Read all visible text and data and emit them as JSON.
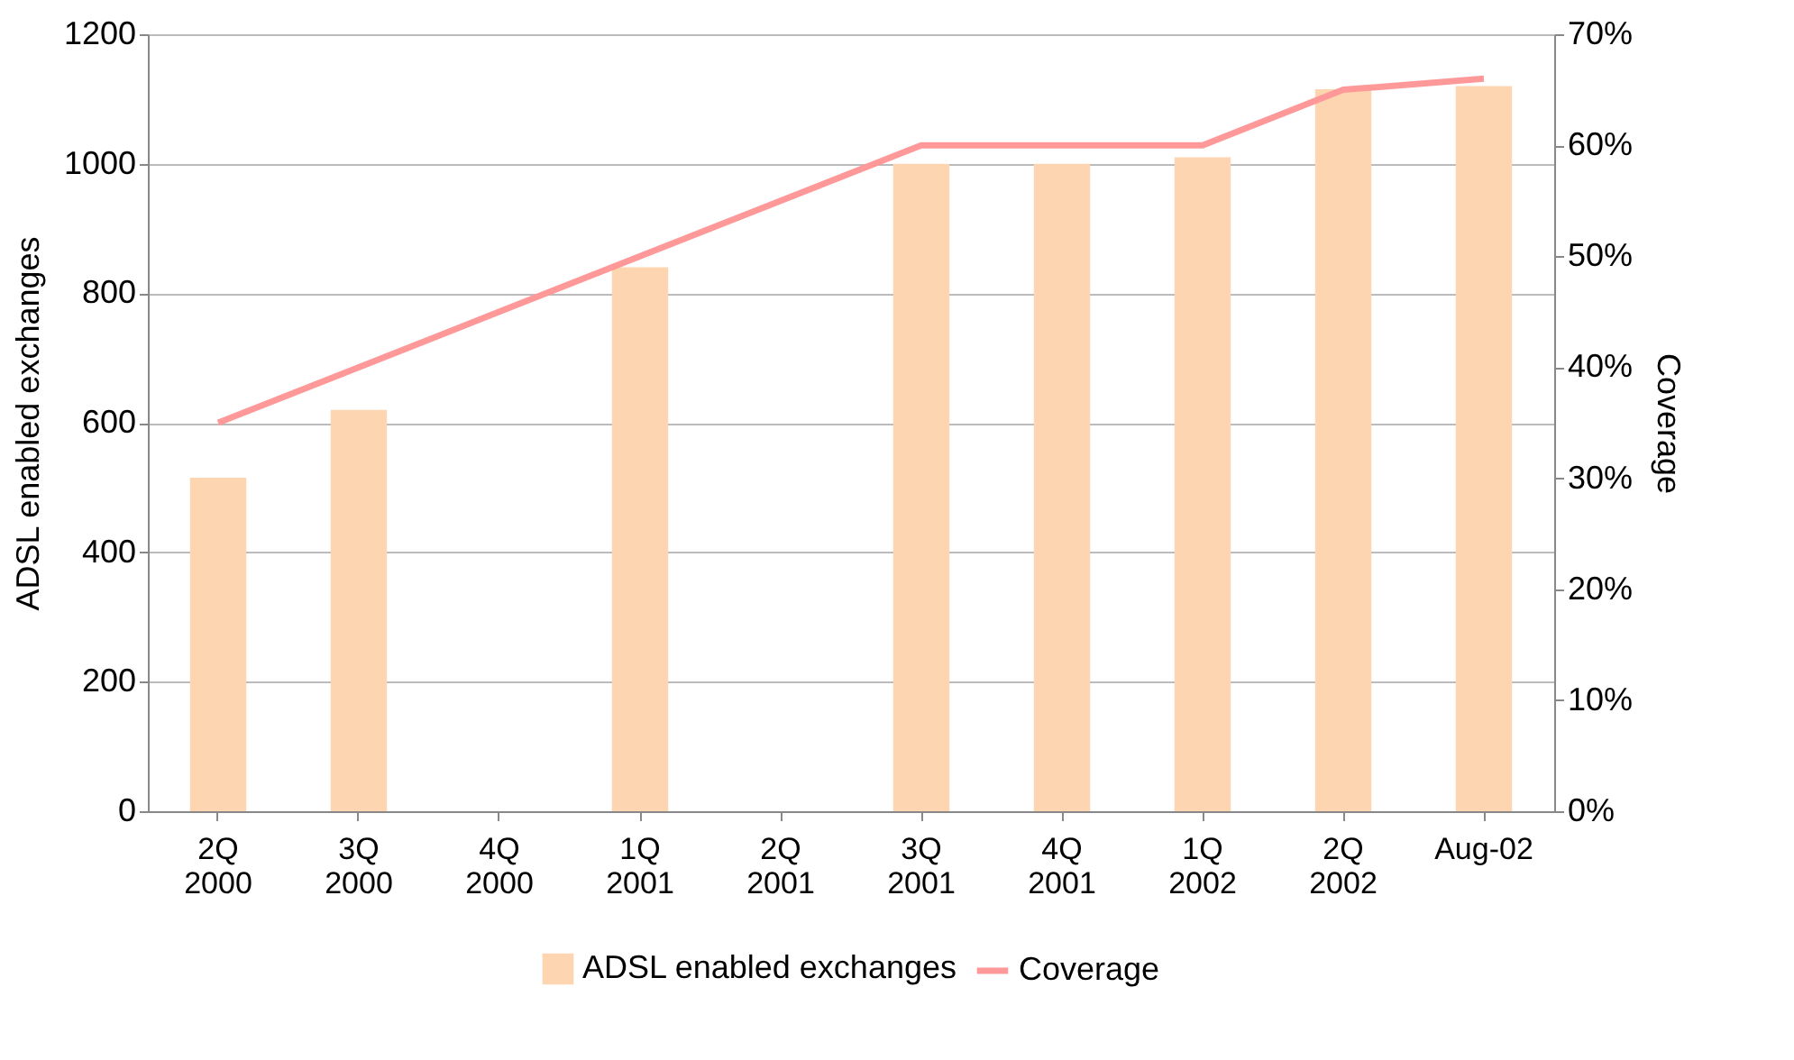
{
  "chart_data": {
    "type": "bar",
    "categories": [
      "2Q 2000",
      "3Q 2000",
      "4Q 2000",
      "1Q 2001",
      "2Q 2001",
      "3Q 2001",
      "4Q 2001",
      "1Q 2002",
      "2Q 2002",
      "Aug-02"
    ],
    "series": [
      {
        "name": "ADSL enabled exchanges",
        "color": "#fdd5b1",
        "values": [
          515,
          620,
          null,
          840,
          null,
          1000,
          1000,
          1010,
          1115,
          1120
        ]
      },
      {
        "name": "Coverage",
        "type": "line",
        "axis": "y2",
        "color": "#ff9999",
        "values": [
          35,
          40,
          45,
          50,
          55,
          60,
          60,
          60,
          65,
          66
        ]
      }
    ],
    "ylabel": "ADSL enabled exchanges",
    "y2label": "Coverage",
    "ylim": [
      0,
      1200
    ],
    "yticks": [
      0,
      200,
      400,
      600,
      800,
      1000,
      1200
    ],
    "y2lim": [
      0,
      70
    ],
    "y2ticks": [
      {
        "value": 0,
        "label": "0%"
      },
      {
        "value": 10,
        "label": "10%"
      },
      {
        "value": 20,
        "label": "20%"
      },
      {
        "value": 30,
        "label": "30%"
      },
      {
        "value": 40,
        "label": "40%"
      },
      {
        "value": 50,
        "label": "50%"
      },
      {
        "value": 60,
        "label": "60%"
      },
      {
        "value": 70,
        "label": "70%"
      }
    ],
    "grid": "y",
    "legend": "bottom",
    "marker": "none",
    "line_style": "solid"
  }
}
